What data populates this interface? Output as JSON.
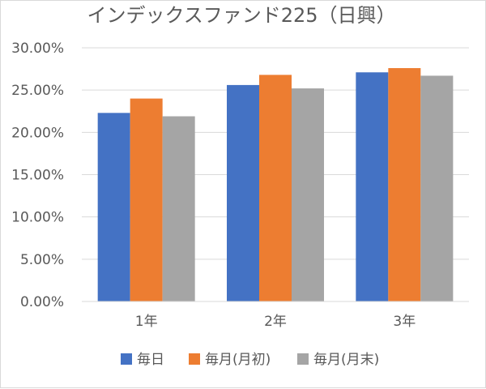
{
  "chart_data": {
    "type": "bar",
    "title": "インデックスファンド225（日興）",
    "categories": [
      "1年",
      "2年",
      "3年"
    ],
    "series": [
      {
        "name": "毎日",
        "color": "#4472c4",
        "values": [
          22.3,
          25.6,
          27.1
        ]
      },
      {
        "name": "毎月(月初)",
        "color": "#ed7d31",
        "values": [
          24.0,
          26.8,
          27.6
        ]
      },
      {
        "name": "毎月(月末)",
        "color": "#a5a5a5",
        "values": [
          21.9,
          25.2,
          26.7
        ]
      }
    ],
    "yticks": [
      "0.00%",
      "5.00%",
      "10.00%",
      "15.00%",
      "20.00%",
      "25.00%",
      "30.00%"
    ],
    "ylim": [
      0,
      30
    ],
    "ystep": 5,
    "grid": true,
    "legend": "bottom",
    "xlabel": "",
    "ylabel": ""
  }
}
